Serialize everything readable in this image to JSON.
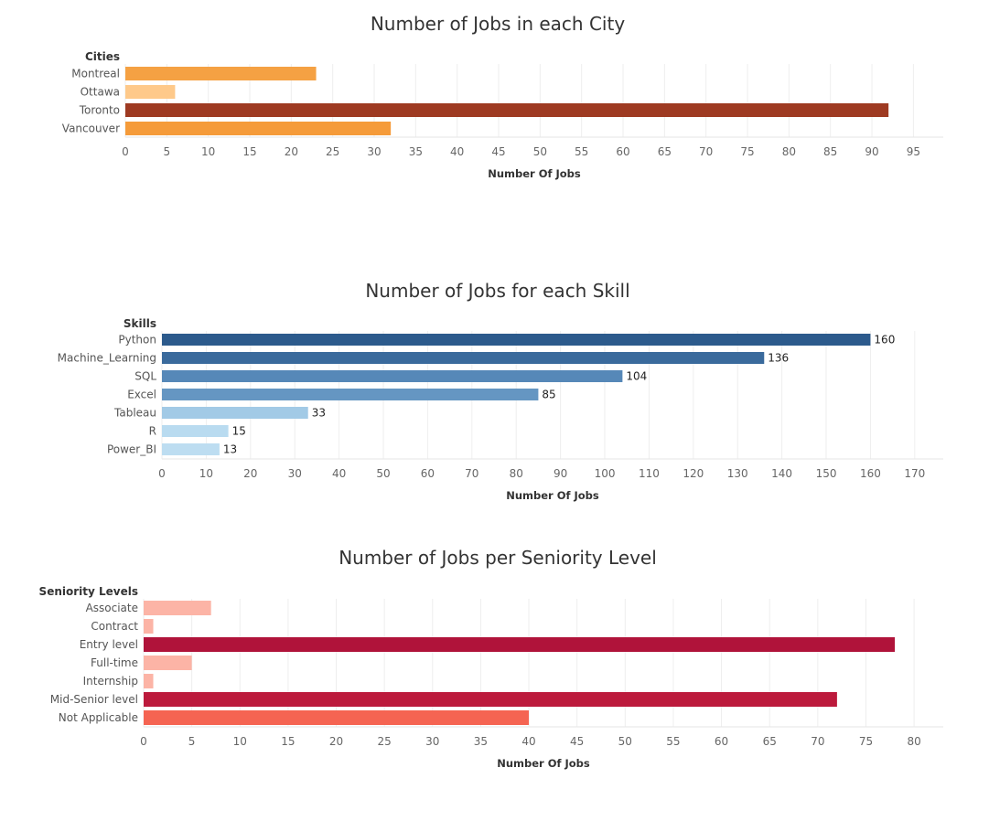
{
  "chart_data": [
    {
      "type": "bar",
      "orientation": "horizontal",
      "title": "Number of Jobs in each City",
      "dimension_label": "Cities",
      "xlabel": "Number Of Jobs",
      "categories": [
        "Montreal",
        "Ottawa",
        "Toronto",
        "Vancouver"
      ],
      "values": [
        23,
        6,
        92,
        32
      ],
      "colors": [
        "#F5A143",
        "#FEC98A",
        "#9E3A22",
        "#F59B3A"
      ],
      "xlim": [
        0,
        95
      ],
      "ticks": [
        0,
        5,
        10,
        15,
        20,
        25,
        30,
        35,
        40,
        45,
        50,
        55,
        60,
        65,
        70,
        75,
        80,
        85,
        90,
        95
      ],
      "show_value_labels": false,
      "grid": true
    },
    {
      "type": "bar",
      "orientation": "horizontal",
      "title": "Number of Jobs for each Skill",
      "dimension_label": "Skills",
      "xlabel": "Number Of Jobs",
      "categories": [
        "Python",
        "Machine_Learning",
        "SQL",
        "Excel",
        "Tableau",
        "R",
        "Power_BI"
      ],
      "values": [
        160,
        136,
        104,
        85,
        33,
        15,
        13
      ],
      "colors": [
        "#2C5A8C",
        "#3A6A9C",
        "#5688B8",
        "#6596C2",
        "#A2CAE6",
        "#B9DBF0",
        "#BDDDF1"
      ],
      "xlim": [
        0,
        170
      ],
      "ticks": [
        0,
        10,
        20,
        30,
        40,
        50,
        60,
        70,
        80,
        90,
        100,
        110,
        120,
        130,
        140,
        150,
        160,
        170
      ],
      "show_value_labels": true,
      "grid": true
    },
    {
      "type": "bar",
      "orientation": "horizontal",
      "title": "Number of Jobs per Seniority Level",
      "dimension_label": "Seniority Levels",
      "xlabel": "Number Of Jobs",
      "categories": [
        "Associate",
        "Contract",
        "Entry level",
        "Full-time",
        "Internship",
        "Mid-Senior level",
        "Not Applicable"
      ],
      "values": [
        7,
        1,
        78,
        5,
        1,
        72,
        40
      ],
      "colors": [
        "#FCB4A6",
        "#FCB4A6",
        "#B0133A",
        "#FCB4A6",
        "#FCB4A6",
        "#BC1A3C",
        "#F56452"
      ],
      "xlim": [
        0,
        80
      ],
      "ticks": [
        0,
        5,
        10,
        15,
        20,
        25,
        30,
        35,
        40,
        45,
        50,
        55,
        60,
        65,
        70,
        75,
        80
      ],
      "show_value_labels": false,
      "grid": true
    }
  ]
}
